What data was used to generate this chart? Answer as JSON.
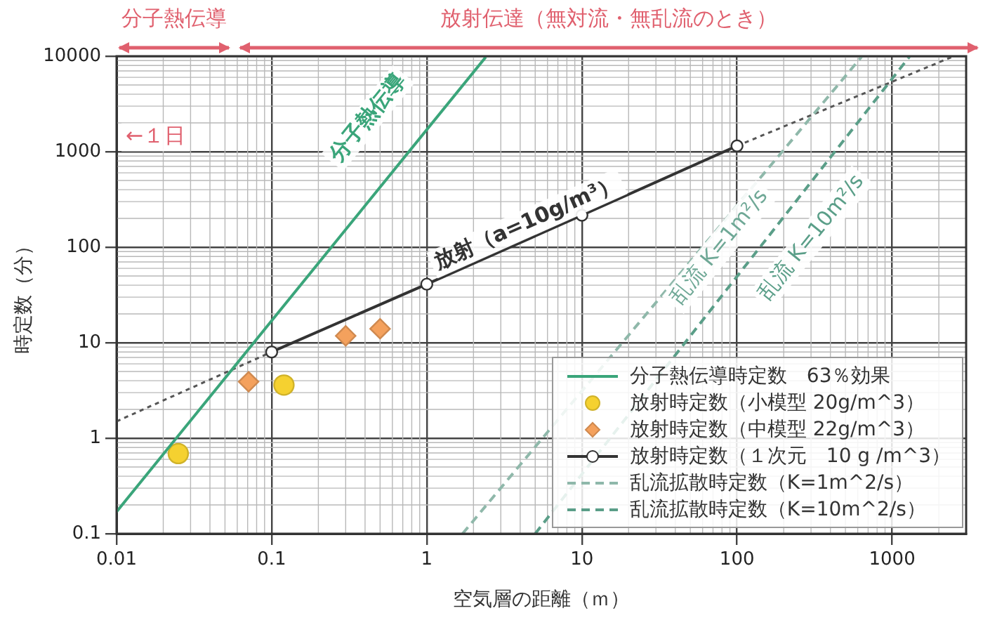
{
  "chart_data": {
    "type": "line",
    "xlabel": "空気層の距離（ｍ）",
    "ylabel": "時定数（分）",
    "log": "xy",
    "xlim": [
      0.01,
      3000
    ],
    "xticks": [
      0.01,
      0.1,
      1,
      10,
      100,
      1000
    ],
    "ylim": [
      0.1,
      10000
    ],
    "yticks": [
      0.1,
      1,
      10,
      100,
      1000,
      10000
    ],
    "grid": true,
    "legend": "bottom right",
    "annotations": [
      "分子熱伝導",
      "放射伝達（無対流・無乱流のとき）",
      "←１日",
      "分子熱伝導",
      "放射（a=10g/m³）",
      "乱流 K=1m²/s",
      "乱流 K=10m²/s"
    ],
    "series": [
      {
        "name": "分子熱伝導時定数　63％効果",
        "type": "line",
        "color": "#3aa57a",
        "x": [
          0.01,
          2.4
        ],
        "values": [
          0.17,
          9800
        ],
        "marker": "none"
      },
      {
        "name": "放射時定数（小模型 20g/m^3）",
        "type": "scatter",
        "color": "#f5d130",
        "x": [
          0.025,
          0.12
        ],
        "values": [
          0.69,
          3.6
        ],
        "marker": "circle"
      },
      {
        "name": "放射時定数（中模型 22g/m^3）",
        "type": "scatter",
        "color": "#f4a15d",
        "x": [
          0.071,
          0.3,
          0.5
        ],
        "values": [
          3.9,
          11.8,
          14
        ],
        "marker": "diamond"
      },
      {
        "name": "放射時定数（１次元　10 g /m^3）",
        "type": "line",
        "color": "#333333",
        "x": [
          0.1,
          1,
          10,
          100
        ],
        "values": [
          8,
          41,
          216,
          1150
        ],
        "marker": "circle"
      },
      {
        "name": "乱流拡散時定数（K=1m^2/s）",
        "type": "line",
        "color": "#8fb8aa",
        "x": [
          1.7,
          640
        ],
        "values": [
          0.1,
          10000
        ],
        "line_style": "dashed",
        "marker": "none"
      },
      {
        "name": "乱流拡散時定数（K=10m^2/s）",
        "type": "line",
        "color": "#5a9e88",
        "x": [
          5,
          1300
        ],
        "values": [
          0.1,
          10000
        ],
        "line_style": "dashed",
        "marker": "none"
      },
      {
        "type": "line",
        "color": "#555555",
        "x": [
          0.01,
          0.1,
          1,
          100,
          2500
        ],
        "values": [
          1.5,
          8,
          null,
          1150,
          10000
        ],
        "line_style": "dotted"
      }
    ]
  }
}
